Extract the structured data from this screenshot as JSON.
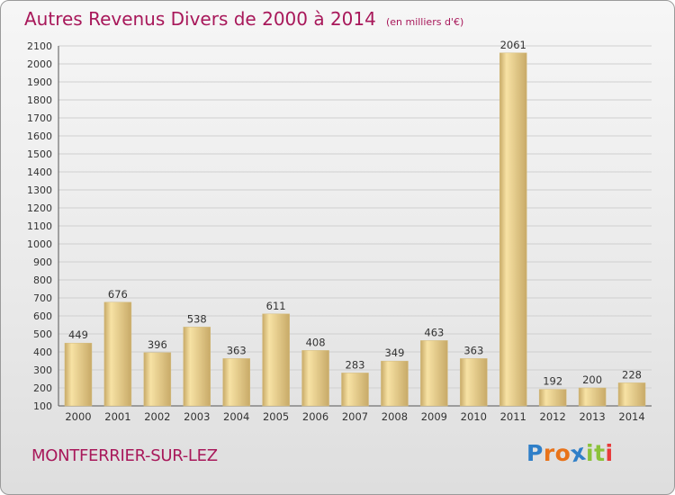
{
  "header": {
    "title": "Autres Revenus Divers de 2000 à 2014",
    "subtitle": "(en milliers d'€)"
  },
  "footer": {
    "city": "MONTFERRIER-SUR-LEZ",
    "brand_letters": [
      "P",
      "r",
      "o",
      "x",
      "i",
      "t",
      "i"
    ],
    "brand_colors": [
      "#2f7fc8",
      "#e8731a",
      "#e8731a",
      "#2f7fc8",
      "#8bc23a",
      "#8bc23a",
      "#e83a3a"
    ]
  },
  "colors": {
    "bar_light": "#f7e2a4",
    "bar_dark": "#c8aa68",
    "title": "#a8185a",
    "grid": "#cfcfcf"
  },
  "chart_data": {
    "type": "bar",
    "title": "Autres Revenus Divers de 2000 à 2014",
    "subtitle": "(en milliers d'€)",
    "categories": [
      "2000",
      "2001",
      "2002",
      "2003",
      "2004",
      "2005",
      "2006",
      "2007",
      "2008",
      "2009",
      "2010",
      "2011",
      "2012",
      "2013",
      "2014"
    ],
    "values": [
      449,
      676,
      396,
      538,
      363,
      611,
      408,
      283,
      349,
      463,
      363,
      2061,
      192,
      200,
      228
    ],
    "ylim": [
      100,
      2100
    ],
    "yticks": [
      100,
      200,
      300,
      400,
      500,
      600,
      700,
      800,
      900,
      1000,
      1100,
      1200,
      1300,
      1400,
      1500,
      1600,
      1700,
      1800,
      1900,
      2000,
      2100
    ],
    "grid": true,
    "xlabel": "",
    "ylabel": ""
  }
}
